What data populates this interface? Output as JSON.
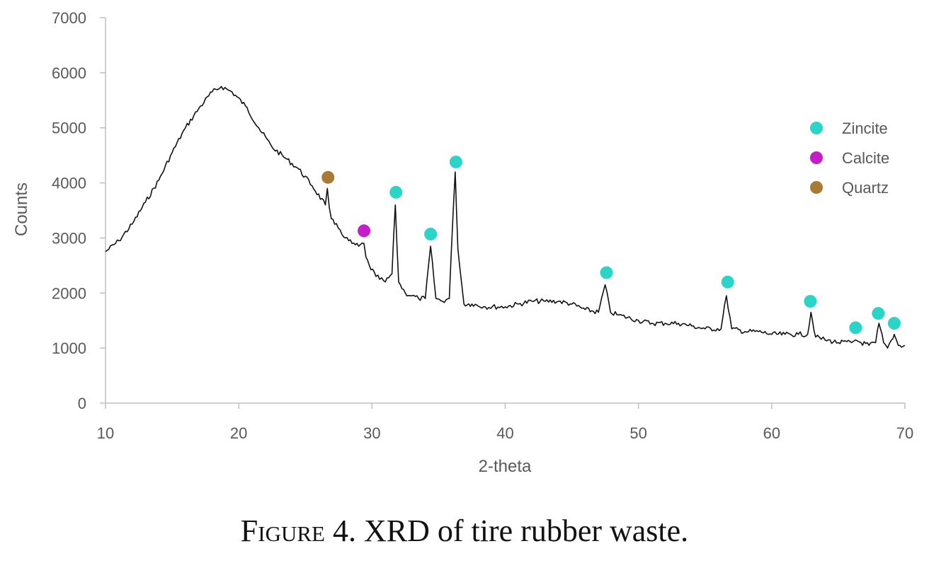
{
  "caption": {
    "figure_label": "Figure",
    "figure_number": "4.",
    "text": "XRD of tire rubber waste."
  },
  "colors": {
    "Zincite": "#2ad4c7",
    "Calcite": "#c21fc8",
    "Quartz": "#a87a35",
    "line": "#111111",
    "axis": "#bfbfbf",
    "text": "#595959"
  },
  "chart_data": {
    "type": "line",
    "title": "",
    "xlabel": "2-theta",
    "ylabel": "Counts",
    "xlim": [
      10,
      70
    ],
    "ylim": [
      0,
      7000
    ],
    "xticks": [
      10,
      20,
      30,
      40,
      50,
      60,
      70
    ],
    "yticks": [
      0,
      1000,
      2000,
      3000,
      4000,
      5000,
      6000,
      7000
    ],
    "grid": false,
    "legend_position": "right",
    "legend": [
      "Zincite",
      "Calcite",
      "Quartz"
    ],
    "series": [
      {
        "x": [
          10,
          11,
          12,
          13,
          14,
          15,
          16,
          17,
          18,
          18.7,
          19.5,
          20.5,
          21.5,
          22.5,
          23.5,
          24.5,
          25.5,
          26.5,
          26.65,
          26.8,
          26.95,
          27.2,
          27.6,
          28.0,
          28.5,
          29.0,
          29.4,
          29.55,
          29.8,
          30.3,
          31.0,
          31.5,
          31.75,
          32.0,
          32.5,
          33.0,
          33.5,
          34.0,
          34.4,
          34.8,
          35.3,
          35.8,
          36.1,
          36.25,
          36.45,
          36.9,
          37.5,
          38.5,
          40,
          41,
          42,
          43,
          44,
          45,
          46,
          47.0,
          47.5,
          47.9,
          48.5,
          50,
          51,
          52,
          53,
          54,
          55,
          56.2,
          56.6,
          57.0,
          58,
          59,
          60,
          61,
          62,
          62.7,
          62.95,
          63.3,
          64,
          65,
          66,
          66.3,
          66.7,
          67.3,
          67.8,
          68.05,
          68.4,
          68.7,
          69.0,
          69.2,
          69.5,
          70
        ],
        "y": [
          2750,
          2950,
          3250,
          3650,
          4050,
          4550,
          5000,
          5350,
          5650,
          5750,
          5650,
          5400,
          5000,
          4650,
          4450,
          4250,
          3950,
          3600,
          3900,
          3550,
          3350,
          3250,
          3150,
          3000,
          2900,
          2850,
          2900,
          2650,
          2500,
          2300,
          2200,
          2350,
          3600,
          2200,
          2000,
          1950,
          1900,
          1900,
          2850,
          1900,
          1850,
          1900,
          3500,
          4200,
          2800,
          1800,
          1800,
          1750,
          1750,
          1800,
          1850,
          1850,
          1850,
          1800,
          1700,
          1650,
          2150,
          1650,
          1600,
          1500,
          1450,
          1450,
          1450,
          1400,
          1350,
          1350,
          1950,
          1350,
          1300,
          1300,
          1250,
          1250,
          1250,
          1250,
          1650,
          1200,
          1150,
          1100,
          1100,
          1150,
          1100,
          1050,
          1100,
          1450,
          1100,
          1000,
          1150,
          1250,
          1050,
          1050
        ]
      }
    ],
    "markers": [
      {
        "phase": "Quartz",
        "x": 26.7,
        "y": 4100
      },
      {
        "phase": "Calcite",
        "x": 29.4,
        "y": 3130
      },
      {
        "phase": "Zincite",
        "x": 31.8,
        "y": 3830
      },
      {
        "phase": "Zincite",
        "x": 34.4,
        "y": 3070
      },
      {
        "phase": "Zincite",
        "x": 36.3,
        "y": 4380
      },
      {
        "phase": "Zincite",
        "x": 47.6,
        "y": 2370
      },
      {
        "phase": "Zincite",
        "x": 56.7,
        "y": 2200
      },
      {
        "phase": "Zincite",
        "x": 62.9,
        "y": 1850
      },
      {
        "phase": "Zincite",
        "x": 66.3,
        "y": 1370
      },
      {
        "phase": "Zincite",
        "x": 68.0,
        "y": 1630
      },
      {
        "phase": "Zincite",
        "x": 69.2,
        "y": 1450
      }
    ]
  }
}
